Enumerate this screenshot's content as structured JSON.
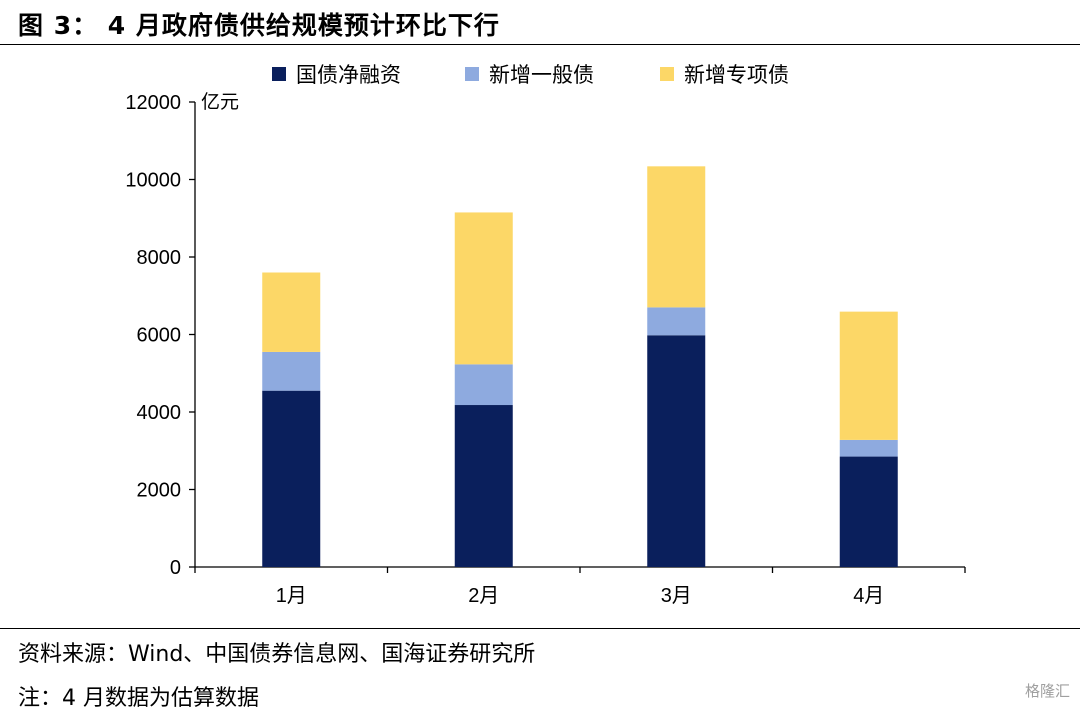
{
  "header": {
    "title": "图 3：  4 月政府债供给规模预计环比下行"
  },
  "footer": {
    "source": "资料来源：Wind、中国债券信息网、国海证券研究所",
    "note": "注：4 月数据为估算数据",
    "watermark": "格隆汇"
  },
  "chart_data": {
    "type": "bar",
    "stacked": true,
    "categories": [
      "1月",
      "2月",
      "3月",
      "4月"
    ],
    "series": [
      {
        "name": "国债净融资",
        "color": "#0A1F5C",
        "values": [
          4550,
          4180,
          5980,
          2850
        ]
      },
      {
        "name": "新增一般债",
        "color": "#8EAADF",
        "values": [
          1000,
          1050,
          720,
          430
        ]
      },
      {
        "name": "新增专项债",
        "color": "#FCD767",
        "values": [
          2050,
          3920,
          3640,
          3310
        ]
      }
    ],
    "ylabel": "亿元",
    "ylim": [
      0,
      12000
    ],
    "yticks": [
      0,
      2000,
      4000,
      6000,
      8000,
      10000,
      12000
    ],
    "grid": false,
    "legend_position": "top"
  }
}
